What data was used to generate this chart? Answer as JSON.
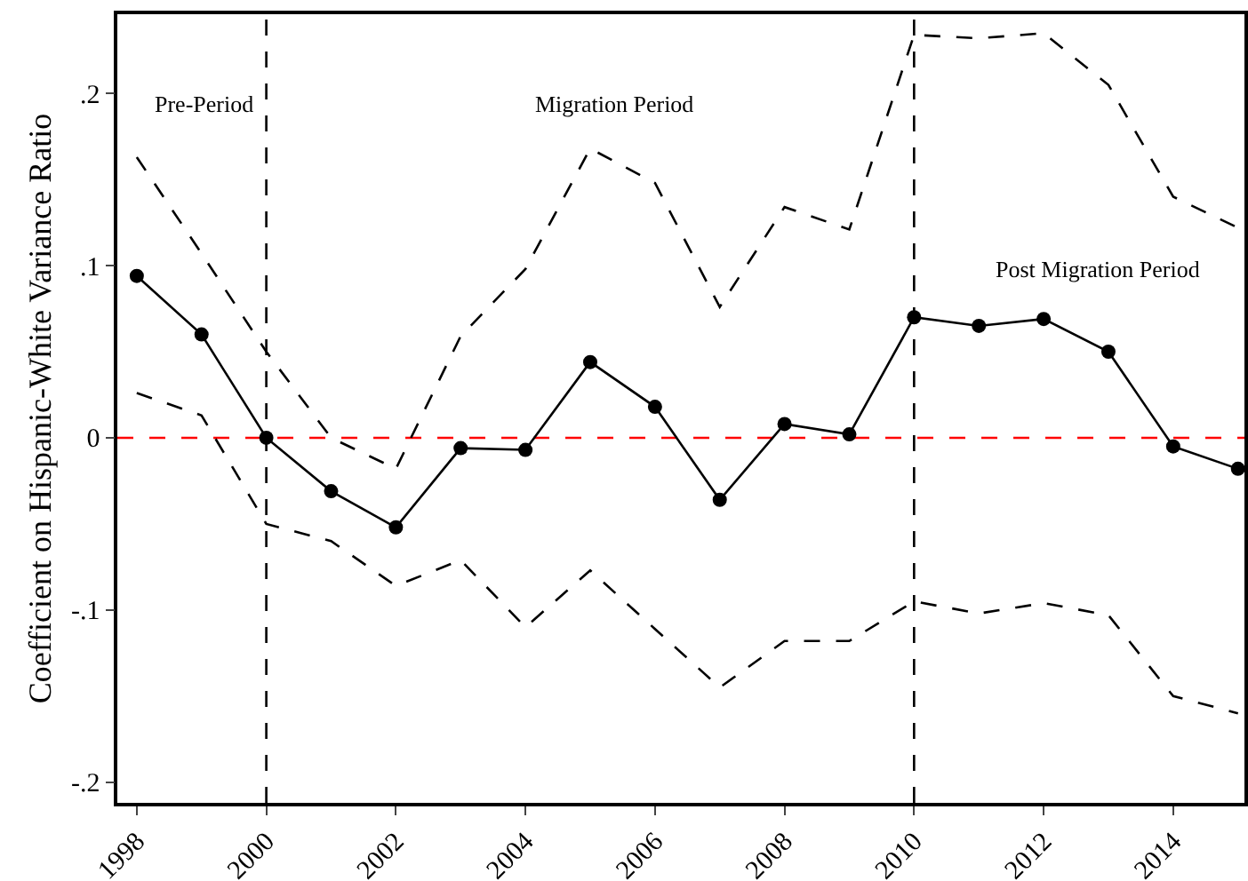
{
  "chart_data": {
    "type": "line",
    "ylabel": "Coefficient on Hispanic-White Variance Ratio",
    "x": [
      1998,
      1999,
      2000,
      2001,
      2002,
      2003,
      2004,
      2005,
      2006,
      2007,
      2008,
      2009,
      2010,
      2011,
      2012,
      2013,
      2014,
      2015
    ],
    "series": [
      {
        "color": "#000000",
        "marker": "circle",
        "line_style": "solid",
        "values": [
          0.094,
          0.06,
          0,
          -0.031,
          -0.052,
          -0.006,
          -0.007,
          0.044,
          0.018,
          -0.036,
          0.008,
          0.002,
          0.07,
          0.065,
          0.069,
          0.05,
          -0.005,
          -0.018
        ]
      },
      {
        "color": "#000000",
        "marker": "none",
        "line_style": "dashed",
        "values": [
          0.163,
          0.107,
          0.05,
          0.0,
          -0.018,
          0.059,
          0.098,
          0.168,
          0.148,
          0.076,
          0.134,
          0.121,
          0.234,
          0.232,
          0.235,
          0.205,
          0.14,
          0.122
        ]
      },
      {
        "color": "#000000",
        "marker": "none",
        "line_style": "dashed",
        "values": [
          0.026,
          0.013,
          -0.05,
          -0.06,
          -0.086,
          -0.071,
          -0.11,
          -0.077,
          -0.111,
          -0.145,
          -0.118,
          -0.118,
          -0.095,
          -0.102,
          -0.096,
          -0.103,
          -0.15,
          -0.16
        ]
      }
    ],
    "xlim": [
      1997.7,
      2015.1
    ],
    "xticks": [
      1998,
      2000,
      2002,
      2004,
      2006,
      2008,
      2010,
      2012,
      2014
    ],
    "ylim": [
      -0.212,
      0.246
    ],
    "yticks": [
      {
        "value": -0.2,
        "label": "-.2"
      },
      {
        "value": -0.1,
        "label": "-.1"
      },
      0,
      {
        "value": 0.1,
        "label": ".1"
      },
      {
        "value": 0.2,
        "label": ".2"
      }
    ],
    "ref_lines": [
      {
        "axis": "y",
        "value": 0,
        "color": "#ff0000",
        "line_style": "dashed"
      },
      {
        "axis": "x",
        "value": 2000,
        "color": "#000000",
        "line_style": "dashed"
      },
      {
        "axis": "x",
        "value": 2010,
        "color": "#000000",
        "line_style": "dashed"
      }
    ],
    "annotations": [
      "Pre-Period",
      "Migration Period",
      "Post Migration Period"
    ],
    "grid": false
  }
}
